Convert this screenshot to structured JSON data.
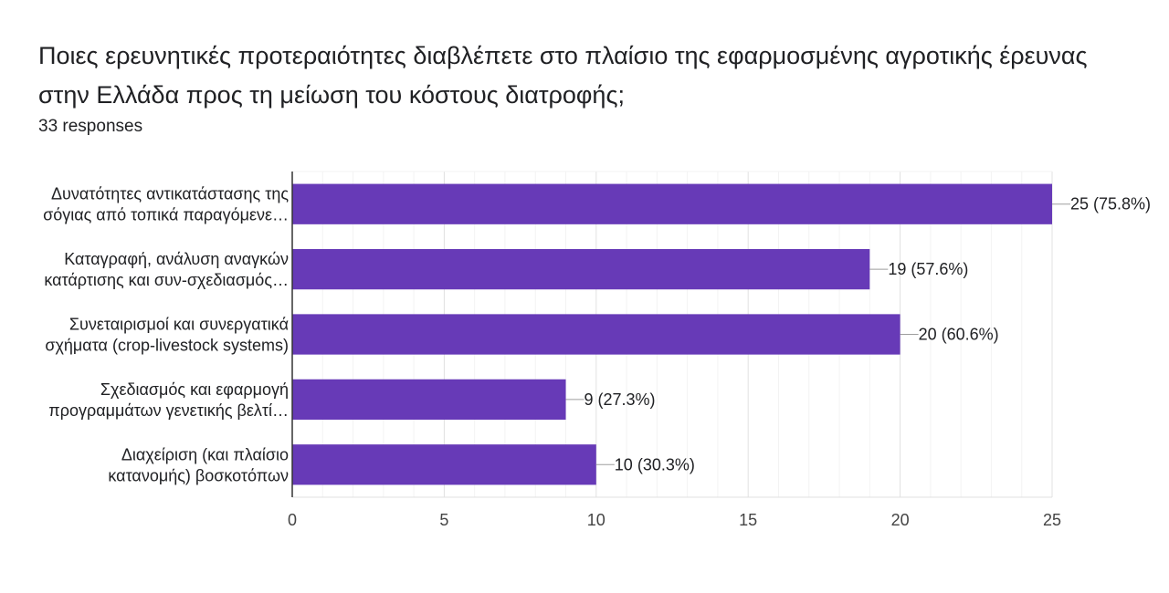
{
  "title": "Ποιες ερευνητικές προτεραιότητες διαβλέπετε στο πλαίσιο της εφαρμοσμένης αγροτικής έρευνας στην Ελλάδα προς τη μείωση του κόστους διατροφής;",
  "subtitle": "33 responses",
  "chart_data": {
    "type": "bar",
    "orientation": "horizontal",
    "categories": [
      [
        "Δυνατότητες αντικατάστασης της",
        "σόγιας από τοπικά παραγόμενε…"
      ],
      [
        "Καταγραφή, ανάλυση αναγκών",
        "κατάρτισης και συν-σχεδιασμός…"
      ],
      [
        "Συνεταιρισμοί και συνεργατικά",
        "σχήματα (crop-livestock systems)"
      ],
      [
        "Σχεδιασμός και εφαρμογή",
        "προγραμμάτων γενετικής βελτί…"
      ],
      [
        "Διαχείριση (και πλαίσιο",
        "κατανομής) βοσκοτόπων"
      ]
    ],
    "values": [
      25,
      19,
      20,
      9,
      10
    ],
    "data_labels": [
      "25 (75.8%)",
      "19 (57.6%)",
      "20 (60.6%)",
      "9 (27.3%)",
      "10 (30.3%)"
    ],
    "xlim": [
      0,
      25
    ],
    "xticks": [
      0,
      5,
      10,
      15,
      20,
      25
    ],
    "grid": true,
    "bar_color": "#673ab7"
  }
}
